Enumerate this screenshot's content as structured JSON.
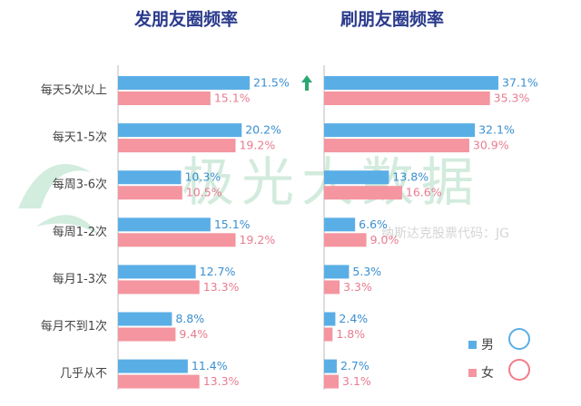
{
  "chart_data": [
    {
      "type": "bar",
      "orientation": "horizontal",
      "title": "发朋友圈频率",
      "categories": [
        "每天5次以上",
        "每天1-5次",
        "每周3-6次",
        "每周1-2次",
        "每月1-3次",
        "每月不到1次",
        "几乎从不"
      ],
      "series": [
        {
          "color": "#5aaee6",
          "label_color": "#3a8fd0",
          "values": [
            21.5,
            20.2,
            10.3,
            15.1,
            12.7,
            8.8,
            11.4
          ],
          "value_labels": [
            "21.5%",
            "20.2%",
            "10.3%",
            "15.1%",
            "12.7%",
            "8.8%",
            "11.4%"
          ]
        },
        {
          "color": "#f4959f",
          "label_color": "#e87c8f",
          "values": [
            15.1,
            19.2,
            10.5,
            19.2,
            13.3,
            9.4,
            13.3
          ],
          "value_labels": [
            "15.1%",
            "19.2%",
            "10.5%",
            "19.2%",
            "13.3%",
            "9.4%",
            "13.3%"
          ]
        }
      ]
    },
    {
      "type": "bar",
      "orientation": "horizontal",
      "title": "刷朋友圈频率",
      "series": [
        {
          "name": "男",
          "color": "#5aaee6",
          "label_color": "#3a8fd0",
          "values": [
            37.1,
            32.1,
            13.8,
            6.6,
            5.3,
            2.4,
            2.7
          ],
          "value_labels": [
            "37.1%",
            "32.1%",
            "13.8%",
            "6.6%",
            "5.3%",
            "2.4%",
            "2.7%"
          ]
        },
        {
          "name": "女",
          "color": "#f4959f",
          "label_color": "#e87c8f",
          "values": [
            35.3,
            30.9,
            16.6,
            9.0,
            3.3,
            1.8,
            3.1
          ],
          "value_labels": [
            "35.3%",
            "30.9%",
            "16.6%",
            "9.0%",
            "3.3%",
            "1.8%",
            "3.1%"
          ]
        }
      ]
    }
  ],
  "watermark": {
    "logo": "极光大数据",
    "note": "纳斯达克股票代码：JG"
  }
}
